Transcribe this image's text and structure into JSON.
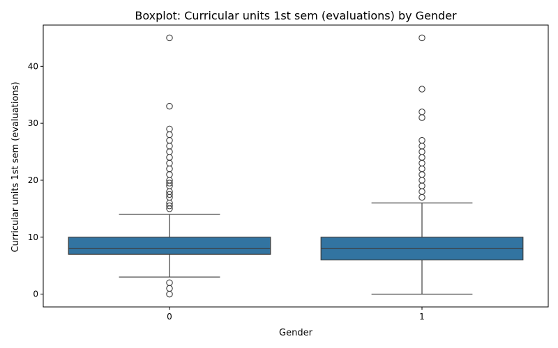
{
  "chart_data": {
    "type": "boxplot",
    "title": "Boxplot: Curricular units 1st sem (evaluations) by Gender",
    "xlabel": "Gender",
    "ylabel": "Curricular units 1st sem (evaluations)",
    "categories": [
      "0",
      "1"
    ],
    "yticks": [
      0,
      10,
      20,
      30,
      40
    ],
    "ylim": [
      -2.25,
      47.25
    ],
    "grid": false,
    "box_color": "#3274a1",
    "line_color": "#3d3d3d",
    "boxes": [
      {
        "category": "0",
        "whisker_low": 3,
        "q1": 7,
        "median": 8,
        "q3": 10,
        "whisker_high": 14,
        "outliers": [
          0,
          1,
          2,
          15,
          15.5,
          16,
          17,
          17.5,
          18,
          19,
          19.5,
          20,
          21,
          22,
          23,
          24,
          25,
          26,
          27,
          28,
          29,
          33,
          45
        ]
      },
      {
        "category": "1",
        "whisker_low": 0,
        "q1": 6,
        "median": 8,
        "q3": 10,
        "whisker_high": 16,
        "outliers": [
          17,
          18,
          19,
          20,
          21,
          22,
          23,
          24,
          25,
          26,
          27,
          31,
          32,
          36,
          45
        ]
      }
    ]
  }
}
